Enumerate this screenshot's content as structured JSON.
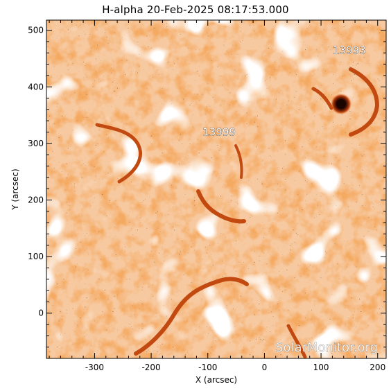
{
  "title": "H-alpha 20-Feb-2025 08:17:53.000",
  "axes": {
    "xlabel": "X (arcsec)",
    "ylabel": "Y (arcsec)",
    "xlim": [
      -385,
      215
    ],
    "ylim": [
      -80,
      518
    ],
    "xticks": [
      -300,
      -200,
      -100,
      0,
      100,
      200
    ],
    "yticks": [
      0,
      100,
      200,
      300,
      400,
      500
    ]
  },
  "active_regions": [
    {
      "label": "13993",
      "x": 150,
      "y": 465
    },
    {
      "label": "13999",
      "x": -80,
      "y": 320
    }
  ],
  "watermark": "SolarMonitor.org",
  "colors": {
    "orange": "#e8641e",
    "dark_orange": "#b83c0c",
    "pale": "#f6c59a",
    "white": "#ffffff",
    "speckle": "#2b1408",
    "sunspot": "#1a0400"
  }
}
